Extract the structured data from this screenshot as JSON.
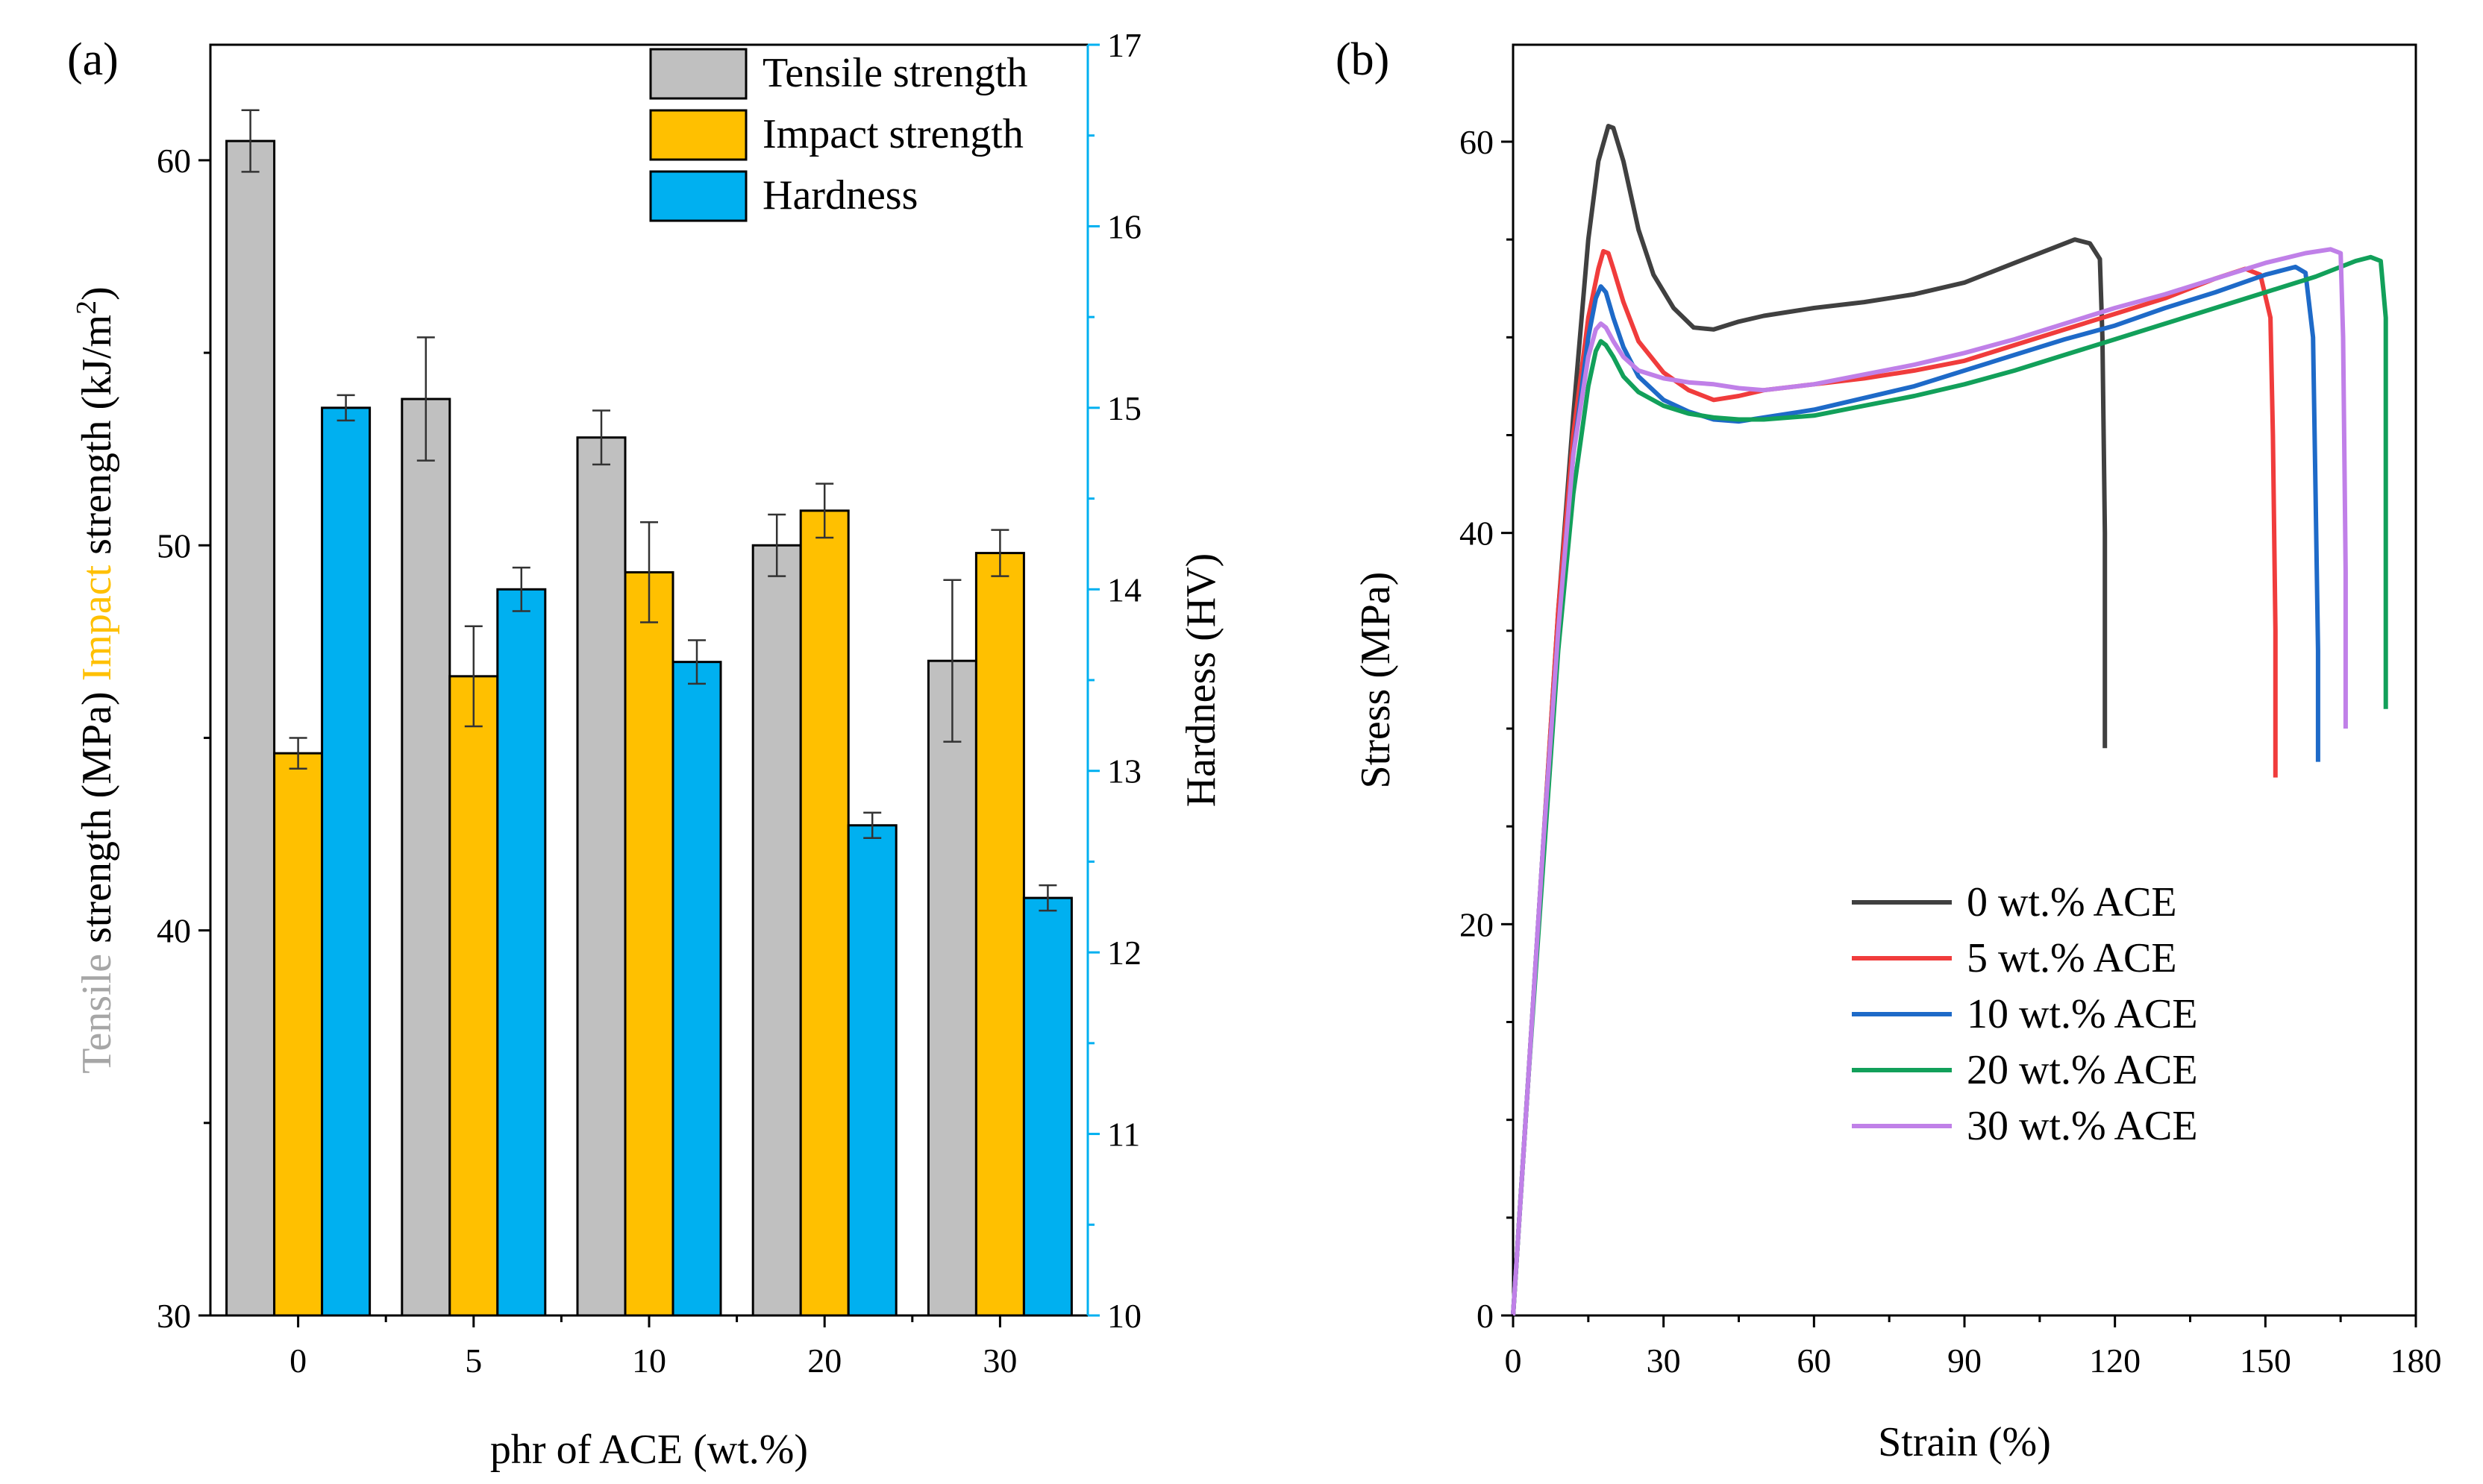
{
  "colors": {
    "tensile": "#C0C0C0",
    "impact": "#FFC000",
    "hardness": "#00B0F0",
    "hardness_axis": "#00B0F0",
    "axis": "#000000",
    "line_0": "#404040",
    "line_5": "#F03C3C",
    "line_10": "#1E6AC8",
    "line_20": "#12A05A",
    "line_30": "#C080E8"
  },
  "panel_a": {
    "label": "(a)",
    "chart_data": {
      "type": "bar",
      "categories": [
        "0",
        "5",
        "10",
        "20",
        "30"
      ],
      "xlabel": "phr of ACE (wt.%)",
      "ylabel_parts": [
        "Tensile",
        " strength (MPa) ",
        "Impact",
        " strength (kJ/m",
        "2",
        ")"
      ],
      "y2label": "Hardness (HV)",
      "ylim": [
        30,
        63
      ],
      "y2lim": [
        10,
        17
      ],
      "yticks": [
        "30",
        "40",
        "50",
        "60"
      ],
      "y2ticks": [
        "10",
        "11",
        "12",
        "13",
        "14",
        "15",
        "16",
        "17"
      ],
      "series": [
        {
          "name": "Tensile strength",
          "axis": "left",
          "values": [
            60.5,
            53.8,
            52.8,
            50.0,
            47.0
          ],
          "errors": [
            0.8,
            1.6,
            0.7,
            0.8,
            2.1
          ]
        },
        {
          "name": "Impact strength",
          "axis": "left",
          "values": [
            44.6,
            46.6,
            49.3,
            50.9,
            49.8
          ],
          "errors": [
            0.4,
            1.3,
            1.3,
            0.7,
            0.6
          ]
        },
        {
          "name": "Hardness",
          "axis": "right",
          "values": [
            15.0,
            14.0,
            13.6,
            12.7,
            12.3
          ],
          "errors": [
            0.07,
            0.12,
            0.12,
            0.07,
            0.07
          ]
        }
      ],
      "legend": "top-right"
    }
  },
  "panel_b": {
    "label": "(b)",
    "chart_data": {
      "type": "line",
      "xlabel": "Strain (%)",
      "ylabel": "Stress (MPa)",
      "xlim": [
        0,
        180
      ],
      "ylim": [
        0,
        65
      ],
      "xticks": [
        "0",
        "30",
        "60",
        "90",
        "120",
        "150",
        "180"
      ],
      "yticks": [
        "0",
        "20",
        "40",
        "60"
      ],
      "legend": "center",
      "series": [
        {
          "name": "0 wt.% ACE",
          "x": [
            0,
            3,
            6,
            9,
            12,
            15,
            17,
            19,
            20,
            22,
            25,
            28,
            32,
            36,
            40,
            45,
            50,
            60,
            70,
            80,
            90,
            100,
            108,
            112,
            115,
            117,
            117.5,
            118,
            118
          ],
          "y": [
            0,
            12,
            24,
            36,
            46,
            55,
            59,
            60.8,
            60.7,
            59,
            55.5,
            53.2,
            51.5,
            50.5,
            50.4,
            50.8,
            51.1,
            51.5,
            51.8,
            52.2,
            52.8,
            53.8,
            54.6,
            55,
            54.8,
            54,
            50,
            40,
            29
          ]
        },
        {
          "name": "5 wt.% ACE",
          "x": [
            0,
            3,
            6,
            9,
            12,
            15,
            17,
            18,
            19,
            20,
            22,
            25,
            30,
            35,
            40,
            45,
            50,
            60,
            70,
            80,
            90,
            100,
            110,
            120,
            130,
            140,
            146,
            149,
            151,
            151.5,
            152,
            152
          ],
          "y": [
            0,
            12,
            24,
            36,
            45,
            51,
            53.5,
            54.4,
            54.3,
            53.5,
            51.8,
            49.8,
            48.2,
            47.3,
            46.8,
            47.0,
            47.3,
            47.6,
            47.9,
            48.3,
            48.8,
            49.6,
            50.4,
            51.2,
            52,
            53,
            53.5,
            53.2,
            51,
            45,
            35,
            27.5
          ]
        },
        {
          "name": "10 wt.% ACE",
          "x": [
            0,
            3,
            6,
            9,
            12,
            15,
            16.5,
            17.5,
            18.5,
            20,
            22,
            25,
            30,
            35,
            40,
            45,
            50,
            60,
            70,
            80,
            90,
            100,
            110,
            120,
            130,
            140,
            150,
            156,
            158,
            159.5,
            160,
            160.5,
            160.5
          ],
          "y": [
            0,
            12,
            24,
            35,
            44,
            50,
            52,
            52.6,
            52.3,
            51,
            49.5,
            48,
            46.8,
            46.2,
            45.8,
            45.7,
            45.9,
            46.3,
            46.9,
            47.5,
            48.3,
            49.1,
            49.9,
            50.6,
            51.5,
            52.3,
            53.2,
            53.6,
            53.3,
            50,
            42,
            34,
            28.3
          ]
        },
        {
          "name": "20 wt.% ACE",
          "x": [
            0,
            3,
            6,
            9,
            12,
            15,
            16.5,
            17.5,
            18.5,
            20,
            22,
            25,
            30,
            35,
            40,
            45,
            50,
            60,
            70,
            80,
            90,
            100,
            110,
            120,
            130,
            140,
            150,
            160,
            168,
            171,
            173,
            174,
            174,
            174
          ],
          "y": [
            0,
            12,
            23,
            34,
            42,
            47.5,
            49.3,
            49.8,
            49.6,
            49,
            48,
            47.2,
            46.5,
            46.1,
            45.9,
            45.8,
            45.8,
            46,
            46.5,
            47,
            47.6,
            48.3,
            49.1,
            49.9,
            50.7,
            51.5,
            52.3,
            53.1,
            53.9,
            54.1,
            53.9,
            51,
            40,
            31
          ]
        },
        {
          "name": "30 wt.% ACE",
          "x": [
            0,
            3,
            6,
            9,
            12,
            15,
            16.5,
            17.5,
            18.5,
            20,
            22,
            25,
            30,
            35,
            40,
            45,
            50,
            60,
            70,
            80,
            90,
            100,
            110,
            120,
            130,
            140,
            150,
            158,
            163,
            165,
            165.5,
            166,
            166
          ],
          "y": [
            0,
            12,
            24,
            35,
            44,
            49,
            50.4,
            50.7,
            50.5,
            49.8,
            49,
            48.3,
            47.9,
            47.7,
            47.6,
            47.4,
            47.3,
            47.6,
            48.1,
            48.6,
            49.2,
            49.9,
            50.7,
            51.5,
            52.2,
            53,
            53.8,
            54.3,
            54.5,
            54.3,
            50,
            38,
            30
          ]
        }
      ]
    }
  }
}
